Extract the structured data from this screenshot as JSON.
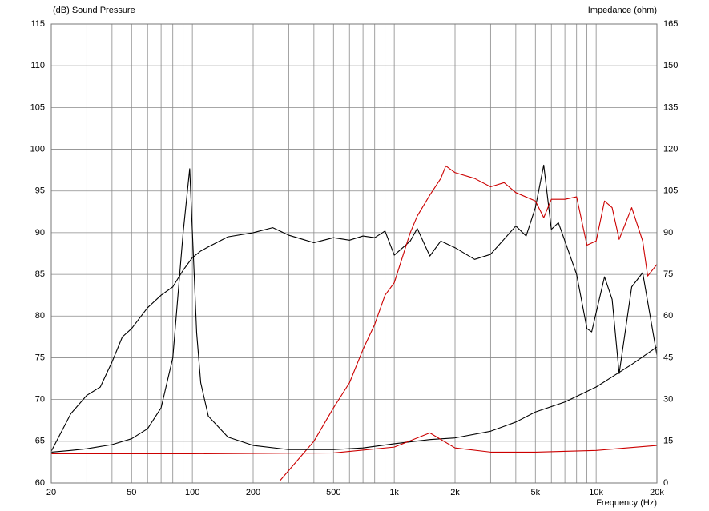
{
  "chart_data": {
    "type": "line",
    "ylabel": "(dB)  Sound Pressure",
    "y2label": "Impedance  (ohm)",
    "xlabel": "Frequency  (Hz)",
    "log_x": true,
    "grid": true,
    "xlim": [
      20,
      20000
    ],
    "xticks": [
      20,
      50,
      100,
      200,
      500,
      {
        "value": 1000,
        "label": "1k"
      },
      {
        "value": 2000,
        "label": "2k"
      },
      {
        "value": 5000,
        "label": "5k"
      },
      {
        "value": 10000,
        "label": "10k"
      },
      {
        "value": 20000,
        "label": "20k"
      }
    ],
    "x_minor_ticks": [
      30,
      40,
      60,
      70,
      80,
      90,
      300,
      400,
      600,
      700,
      800,
      900,
      3000,
      4000,
      6000,
      7000,
      8000,
      9000
    ],
    "ylim": [
      60,
      115
    ],
    "yticks": [
      60,
      65,
      70,
      75,
      80,
      85,
      90,
      95,
      100,
      105,
      110,
      115
    ],
    "y2lim": [
      0,
      165
    ],
    "y2ticks": [
      0,
      15,
      30,
      45,
      60,
      75,
      90,
      105,
      120,
      135,
      150,
      165
    ],
    "series": [
      {
        "color": "#000000",
        "x": [
          20,
          25,
          30,
          35,
          40,
          45,
          50,
          60,
          70,
          80,
          90,
          100,
          110,
          120,
          150,
          200,
          250,
          300,
          400,
          500,
          600,
          700,
          800,
          900,
          1000,
          1200,
          1300,
          1500,
          1700,
          2000,
          2500,
          3000,
          4000,
          4500,
          5000,
          5500,
          6000,
          6500,
          7000,
          8000,
          9000,
          9500,
          11000,
          12000,
          13000,
          15000,
          17000,
          20000
        ],
        "values": [
          63.8,
          68.3,
          70.5,
          71.5,
          74.5,
          77.5,
          78.5,
          81,
          82.5,
          83.5,
          85.5,
          87,
          87.8,
          88.3,
          89.5,
          90,
          90.6,
          89.7,
          88.8,
          89.4,
          89.1,
          89.6,
          89.4,
          90.2,
          87.3,
          89,
          90.5,
          87.2,
          89,
          88.2,
          86.8,
          87.4,
          90.8,
          89.6,
          93,
          98.1,
          90.4,
          91.2,
          89,
          85,
          78.5,
          78.1,
          84.7,
          82,
          73.1,
          83.5,
          85.2,
          75.3
        ]
      },
      {
        "color": "#cc0000",
        "x": [
          250,
          270,
          300,
          400,
          500,
          600,
          700,
          800,
          900,
          1000,
          1200,
          1300,
          1500,
          1700,
          1800,
          2000,
          2500,
          3000,
          3500,
          4000,
          5000,
          5500,
          6000,
          7000,
          8000,
          9000,
          10000,
          11000,
          12000,
          13000,
          15000,
          17000,
          18000,
          20000
        ],
        "values": [
          null,
          60.2,
          61.5,
          65,
          69,
          72,
          76,
          79,
          82.5,
          84,
          90,
          92,
          94.5,
          96.5,
          98,
          97.2,
          96.5,
          95.5,
          96,
          94.8,
          93.8,
          91.8,
          94,
          94,
          94.3,
          88.5,
          89,
          93.8,
          93,
          89.2,
          93,
          89,
          84.8,
          86.2
        ]
      },
      {
        "color": "#000000",
        "axis": "y2",
        "x": [
          20,
          25,
          30,
          40,
          50,
          60,
          70,
          80,
          90,
          97,
          105,
          110,
          120,
          150,
          200,
          300,
          500,
          700,
          1000,
          1500,
          2000,
          3000,
          4000,
          5000,
          7000,
          10000,
          15000,
          20000
        ],
        "values": [
          11.1,
          11.7,
          12.3,
          13.8,
          15.9,
          19.5,
          27,
          45,
          90,
          113,
          54,
          36,
          24,
          16.5,
          13.5,
          12,
          12,
          12.6,
          14.1,
          15.6,
          16.2,
          18.6,
          21.9,
          25.5,
          29.1,
          34.5,
          42.6,
          48.9
        ]
      },
      {
        "color": "#cc0000",
        "axis": "y2",
        "x": [
          20,
          100,
          500,
          1000,
          1500,
          2000,
          3000,
          5000,
          10000,
          20000
        ],
        "values": [
          10.5,
          10.5,
          10.8,
          12.9,
          18,
          12.6,
          11.1,
          11.1,
          11.7,
          13.5
        ]
      }
    ]
  }
}
